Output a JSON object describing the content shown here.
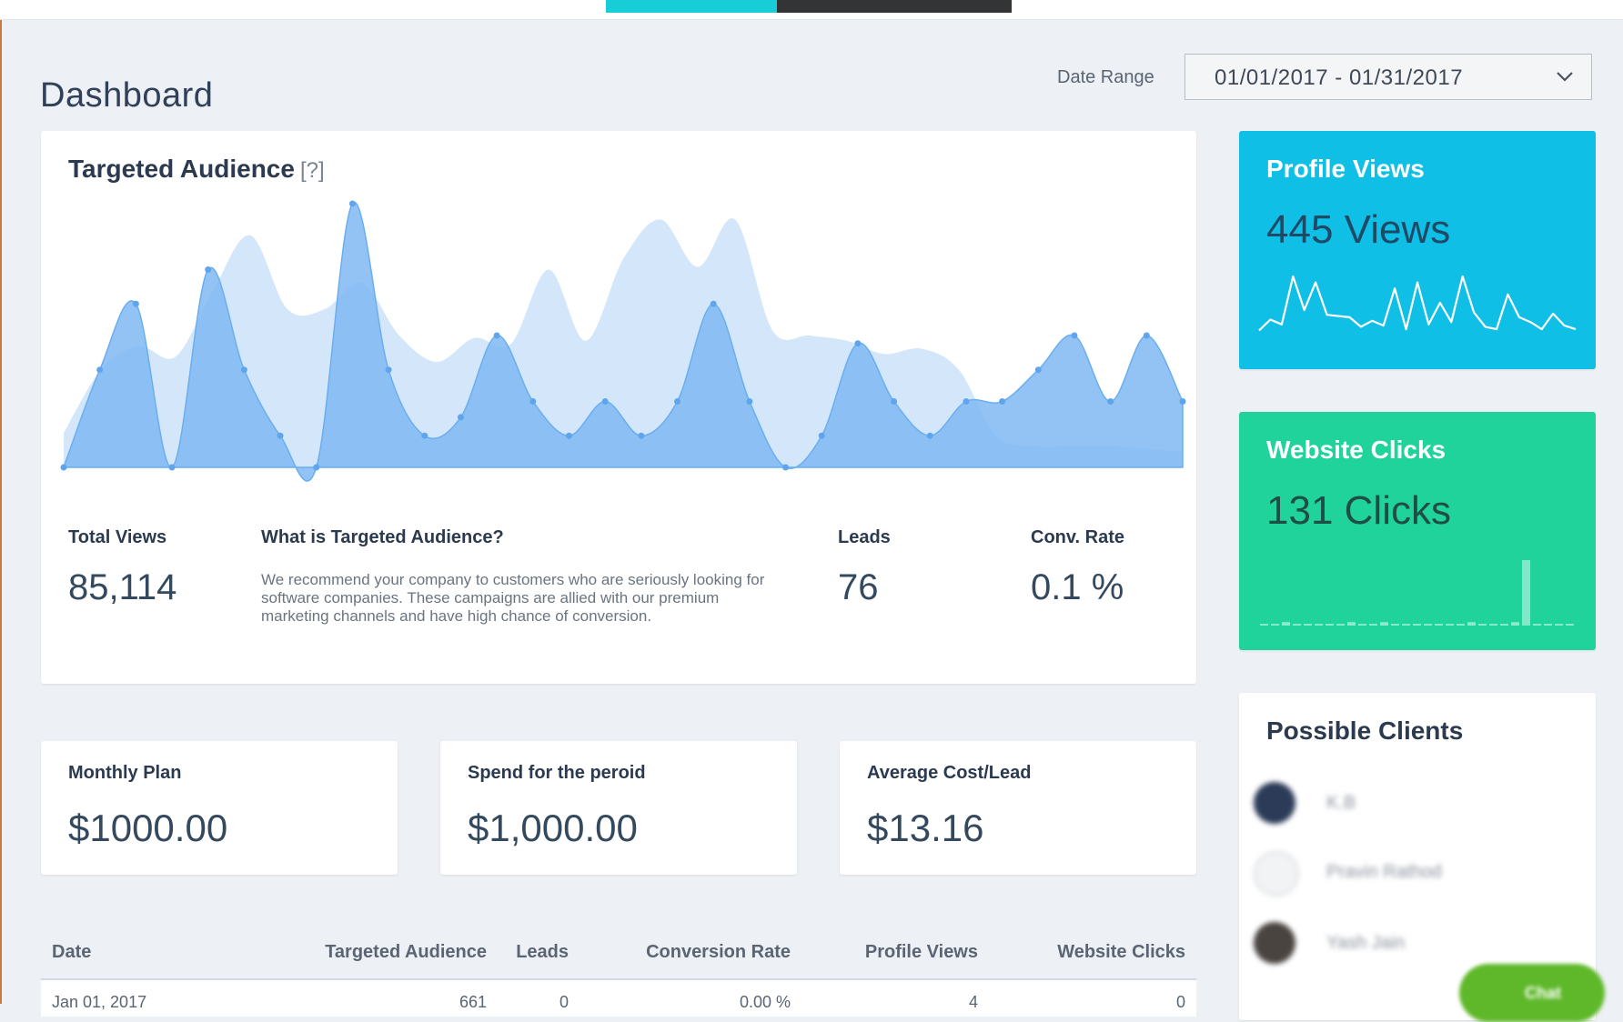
{
  "page": {
    "title": "Dashboard"
  },
  "date_range": {
    "label": "Date Range",
    "value": "01/01/2017 - 01/31/2017"
  },
  "targeted_audience": {
    "title": "Targeted Audience",
    "help": "[?]",
    "stats": {
      "total_views_label": "Total Views",
      "total_views": "85,114",
      "leads_label": "Leads",
      "leads": "76",
      "conv_rate_label": "Conv. Rate",
      "conv_rate": "0.1 %"
    },
    "what_is": {
      "title": "What is Targeted Audience?",
      "text": "We recommend your company to customers who are seriously looking for software companies. These campaigns are allied with our premium marketing channels and have high chance of conversion."
    }
  },
  "profile_views": {
    "title": "Profile Views",
    "value": "445 Views"
  },
  "website_clicks": {
    "title": "Website Clicks",
    "value": "131 Clicks"
  },
  "possible_clients": {
    "title": "Possible Clients",
    "items": [
      {
        "name": "K.B"
      },
      {
        "name": "Pravin Rathod"
      },
      {
        "name": "Yash Jain"
      }
    ]
  },
  "summary": {
    "monthly_plan_label": "Monthly Plan",
    "monthly_plan": "$1000.00",
    "spend_label": "Spend for the peroid",
    "spend": "$1,000.00",
    "avg_cost_label": "Average Cost/Lead",
    "avg_cost": "$13.16"
  },
  "table": {
    "headers": [
      "Date",
      "Targeted Audience",
      "Leads",
      "Conversion Rate",
      "Profile Views",
      "Website Clicks"
    ],
    "rows": [
      [
        "Jan 01, 2017",
        "661",
        "0",
        "0.00 %",
        "4",
        "0"
      ]
    ]
  },
  "chat": {
    "label": "Chat"
  },
  "colors": {
    "accent_teal": "#16cdd8",
    "profile_views_bg": "#0fbfe6",
    "website_clicks_bg": "#1fd39a",
    "chart_dark": "#7fb9f2",
    "chart_light": "#d2e6fa"
  },
  "chart_data": [
    {
      "type": "area",
      "series": [
        {
          "values": [
            13,
            37,
            46,
            42,
            67,
            88,
            60,
            60,
            70,
            50,
            40,
            49,
            47,
            75,
            48,
            79,
            94,
            76,
            94,
            52,
            50,
            48,
            43,
            45,
            37,
            12,
            8,
            8,
            8,
            7,
            6
          ]
        },
        {
          "values": [
            0,
            37,
            62,
            0,
            75,
            37,
            12,
            0,
            100,
            37,
            12,
            19,
            50,
            25,
            12,
            25,
            12,
            25,
            62,
            25,
            0,
            12,
            47,
            25,
            12,
            25,
            25,
            37,
            50,
            25,
            50,
            25
          ]
        }
      ]
    },
    {
      "type": "line",
      "values": [
        5,
        14,
        10,
        50,
        22,
        45,
        18,
        17,
        16,
        8,
        13,
        9,
        40,
        6,
        45,
        10,
        28,
        12,
        50,
        20,
        8,
        6,
        35,
        16,
        12,
        6,
        19,
        9,
        6
      ]
    },
    {
      "type": "bar",
      "values": [
        1,
        1,
        2,
        1,
        1,
        1,
        1,
        1,
        2,
        1,
        1,
        2,
        1,
        1,
        1,
        1,
        1,
        1,
        1,
        2,
        1,
        1,
        1,
        2,
        38,
        1,
        1,
        1,
        1
      ]
    }
  ]
}
